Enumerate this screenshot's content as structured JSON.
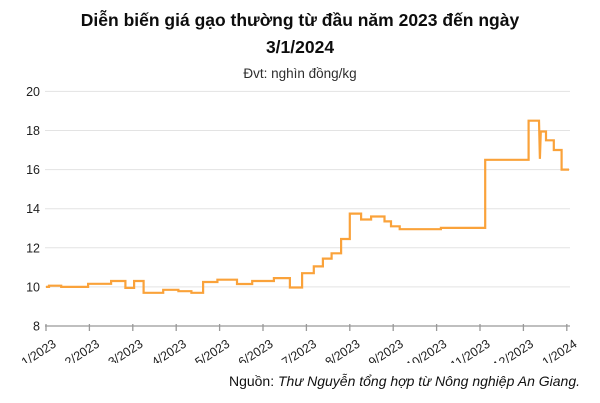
{
  "title": {
    "line1": "Diễn biến giá gạo thường từ đầu năm 2023 đến ngày",
    "line2": "3/1/2024"
  },
  "subtitle": "Đvt: nghìn đồng/kg",
  "source": {
    "label": "Nguồn: ",
    "text": "Thư Nguyễn tổng hợp từ Nông nghiệp An Giang."
  },
  "colors": {
    "line": "#FAA23A",
    "grid": "#e3e3e3",
    "axis": "#999999",
    "tick_text": "#1f1f1f"
  },
  "chart_data": {
    "type": "line",
    "title": "Diễn biến giá gạo thường từ đầu năm 2023 đến ngày 3/1/2024",
    "ylabel": "nghìn đồng/kg",
    "xlabel": "",
    "ylim": [
      8,
      20
    ],
    "y_ticks": [
      8,
      10,
      12,
      14,
      16,
      18,
      20
    ],
    "x_tick_labels": [
      "1/2023",
      "2/2023",
      "3/2023",
      "4/2023",
      "5/2023",
      "6/2023",
      "7/2023",
      "8/2023",
      "9/2023",
      "10/2023",
      "11/2023",
      "12/2023",
      "1/2024"
    ],
    "grid": "horizontal",
    "legend_position": "none",
    "x_unit": "months offset from 1/2023 tick",
    "series": [
      {
        "name": "Giá gạo thường",
        "points": [
          [
            0.0,
            10.0
          ],
          [
            0.07,
            10.0
          ],
          [
            0.07,
            10.06
          ],
          [
            0.35,
            10.06
          ],
          [
            0.35,
            10.0
          ],
          [
            0.97,
            10.0
          ],
          [
            0.97,
            10.16
          ],
          [
            1.5,
            10.16
          ],
          [
            1.5,
            10.3
          ],
          [
            1.83,
            10.3
          ],
          [
            1.83,
            9.95
          ],
          [
            2.03,
            9.95
          ],
          [
            2.03,
            10.3
          ],
          [
            2.25,
            10.3
          ],
          [
            2.25,
            9.7
          ],
          [
            2.7,
            9.7
          ],
          [
            2.7,
            9.85
          ],
          [
            3.05,
            9.85
          ],
          [
            3.05,
            9.78
          ],
          [
            3.35,
            9.78
          ],
          [
            3.35,
            9.7
          ],
          [
            3.62,
            9.7
          ],
          [
            3.62,
            10.25
          ],
          [
            3.95,
            10.25
          ],
          [
            3.95,
            10.37
          ],
          [
            4.4,
            10.37
          ],
          [
            4.4,
            10.15
          ],
          [
            4.75,
            10.15
          ],
          [
            4.75,
            10.3
          ],
          [
            5.25,
            10.3
          ],
          [
            5.25,
            10.45
          ],
          [
            5.62,
            10.45
          ],
          [
            5.62,
            9.97
          ],
          [
            5.9,
            9.97
          ],
          [
            5.9,
            10.7
          ],
          [
            6.17,
            10.7
          ],
          [
            6.17,
            11.05
          ],
          [
            6.38,
            11.05
          ],
          [
            6.38,
            11.45
          ],
          [
            6.58,
            11.45
          ],
          [
            6.58,
            11.72
          ],
          [
            6.8,
            11.72
          ],
          [
            6.8,
            12.45
          ],
          [
            7.0,
            12.45
          ],
          [
            7.0,
            13.75
          ],
          [
            7.26,
            13.75
          ],
          [
            7.26,
            13.45
          ],
          [
            7.49,
            13.45
          ],
          [
            7.49,
            13.6
          ],
          [
            7.8,
            13.6
          ],
          [
            7.8,
            13.35
          ],
          [
            7.95,
            13.35
          ],
          [
            7.95,
            13.1
          ],
          [
            8.15,
            13.1
          ],
          [
            8.15,
            12.95
          ],
          [
            9.1,
            12.95
          ],
          [
            9.1,
            13.02
          ],
          [
            10.12,
            13.02
          ],
          [
            10.12,
            16.5
          ],
          [
            11.12,
            16.5
          ],
          [
            11.12,
            18.5
          ],
          [
            11.36,
            18.5
          ],
          [
            11.38,
            16.55
          ],
          [
            11.4,
            17.95
          ],
          [
            11.52,
            17.95
          ],
          [
            11.52,
            17.5
          ],
          [
            11.7,
            17.5
          ],
          [
            11.7,
            17.0
          ],
          [
            11.88,
            17.0
          ],
          [
            11.88,
            16.0
          ],
          [
            12.05,
            16.0
          ]
        ]
      }
    ]
  }
}
